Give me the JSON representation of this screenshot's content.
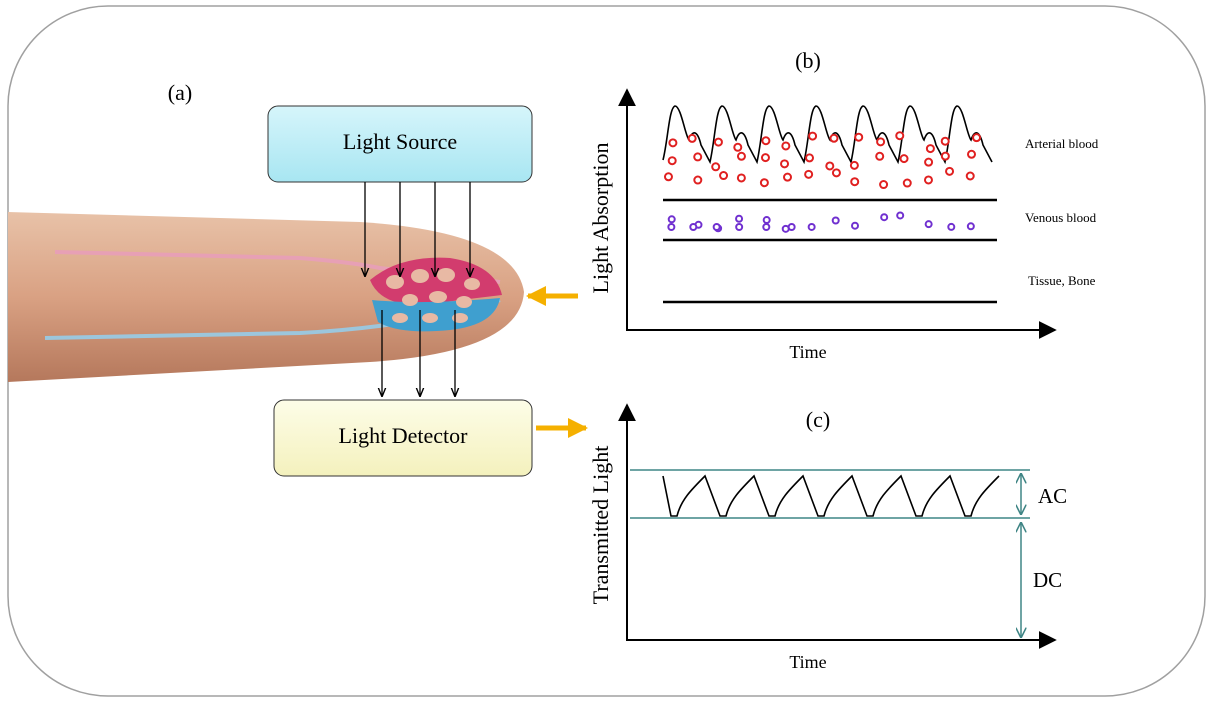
{
  "panel_a": {
    "label": "(a)",
    "source": "Light Source",
    "detector": "Light Detector"
  },
  "panel_b": {
    "label": "(b)",
    "y_axis": "Light Absorption",
    "x_axis": "Time",
    "layers": [
      "Arterial blood",
      "Venous blood",
      "Tissue, Bone"
    ]
  },
  "panel_c": {
    "label": "(c)",
    "y_axis": "Transmitted Light",
    "x_axis": "Time",
    "ac": "AC",
    "dc": "DC"
  }
}
